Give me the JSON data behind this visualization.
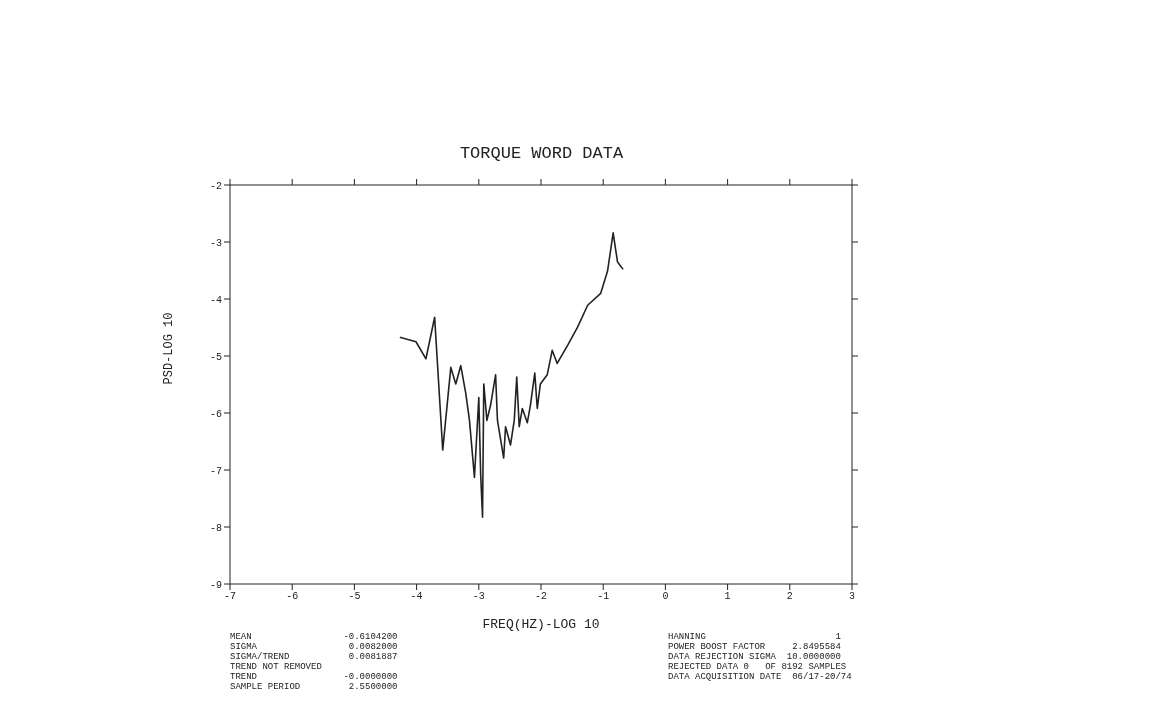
{
  "chart_data": {
    "type": "line",
    "title": "TORQUE WORD DATA",
    "xlabel": "FREQ(HZ)-LOG 10",
    "ylabel": "PSD-LOG 10",
    "xlim": [
      -7,
      3
    ],
    "xticks": [
      -7,
      -6,
      -5,
      -4,
      -3,
      -2,
      -1,
      0,
      1,
      2,
      3
    ],
    "ylim": [
      -9,
      -2
    ],
    "yticks": [
      -9,
      -8,
      -7,
      -6,
      -5,
      -4,
      -3,
      -2
    ],
    "grid": false,
    "legend": false,
    "marker": "none",
    "line_style": "solid",
    "x": [
      -4.27,
      -4.01,
      -3.85,
      -3.71,
      -3.58,
      -3.45,
      -3.37,
      -3.29,
      -3.21,
      -3.15,
      -3.07,
      -3.0,
      -2.97,
      -2.94,
      -2.92,
      -2.87,
      -2.81,
      -2.73,
      -2.7,
      -2.6,
      -2.57,
      -2.49,
      -2.43,
      -2.39,
      -2.35,
      -2.3,
      -2.22,
      -2.17,
      -2.1,
      -2.06,
      -2.01,
      -1.9,
      -1.82,
      -1.74,
      -1.57,
      -1.41,
      -1.25,
      -1.04,
      -0.93,
      -0.84,
      -0.77,
      -0.68
    ],
    "series": [
      {
        "color": "#222222",
        "values": [
          -4.67,
          -4.75,
          -5.05,
          -4.32,
          -6.65,
          -5.2,
          -5.49,
          -5.17,
          -5.65,
          -6.13,
          -7.13,
          -5.73,
          -7.08,
          -7.83,
          -5.49,
          -6.13,
          -5.86,
          -5.33,
          -6.13,
          -6.79,
          -6.24,
          -6.56,
          -6.13,
          -5.37,
          -6.24,
          -5.92,
          -6.17,
          -5.86,
          -5.3,
          -5.92,
          -5.49,
          -5.33,
          -4.9,
          -5.13,
          -4.81,
          -4.49,
          -4.11,
          -3.9,
          -3.51,
          -2.84,
          -3.35,
          -3.48
        ]
      }
    ],
    "annotations": [
      "MEAN                 -0.6104200",
      "SIGMA                 0.0082000",
      "SIGMA/TREND           0.0081887",
      "TREND NOT REMOVED",
      "TREND                -0.0000000",
      "SAMPLE PERIOD         2.5500000",
      "HANNING                        1",
      "POWER BOOST FACTOR     2.8495584",
      "DATA REJECTION SIGMA  10.0000000",
      "REJECTED DATA 0   OF 8192 SAMPLES",
      "DATA ACQUISITION DATE  06/17-20/74"
    ]
  }
}
